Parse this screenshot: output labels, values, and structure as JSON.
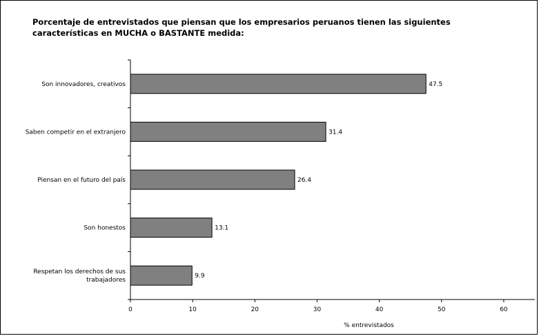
{
  "chart_data": {
    "type": "bar",
    "orientation": "horizontal",
    "title_lines": [
      "Porcentaje de entrevistados que piensan que los empresarios peruanos tienen las siguientes",
      "características en MUCHA o BASTANTE medida:"
    ],
    "categories": [
      [
        "Son innovadores, creativos"
      ],
      [
        "Saben competir en el extranjero"
      ],
      [
        "Piensan en el futuro del país"
      ],
      [
        "Son honestos"
      ],
      [
        "Respetan los derechos de sus",
        "trabajadores"
      ]
    ],
    "values": [
      47.5,
      31.4,
      26.4,
      13.1,
      9.9
    ],
    "value_labels": [
      "47.5",
      "31.4",
      "26.4",
      "13.1",
      "9.9"
    ],
    "xlabel": "% entrevistados",
    "ylabel": "",
    "xlim": [
      0,
      65
    ],
    "xticks": [
      0,
      10,
      20,
      30,
      40,
      50,
      60
    ],
    "grid": false,
    "legend": "none",
    "colors": {
      "bar_fill": "#808080",
      "bar_stroke": "#000000",
      "axis": "#000000"
    }
  }
}
